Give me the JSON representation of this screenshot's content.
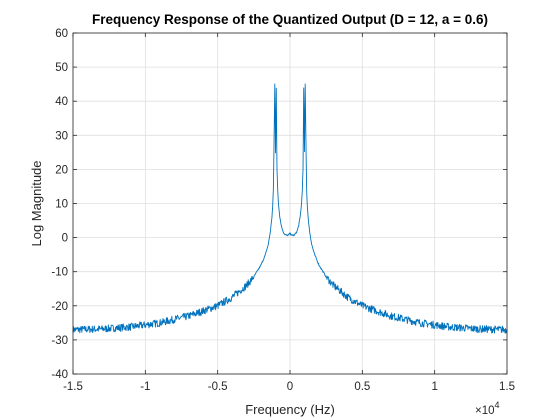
{
  "chart_data": {
    "type": "line",
    "title": "Frequency Response of the Quantized Output (D = 12, a = 0.6)",
    "xlabel": "Frequency (Hz)",
    "ylabel": "Log Magnitude",
    "x_exponent_base": "×10",
    "x_exponent_power": "4",
    "xlim": [
      -15000,
      15000
    ],
    "ylim": [
      -40,
      60
    ],
    "xticks": [
      -15000,
      -10000,
      -5000,
      0,
      5000,
      10000,
      15000
    ],
    "xtick_labels": [
      "-1.5",
      "-1",
      "-0.5",
      "0",
      "0.5",
      "1",
      "1.5"
    ],
    "yticks": [
      -40,
      -30,
      -20,
      -10,
      0,
      10,
      20,
      30,
      40,
      50,
      60
    ],
    "ytick_labels": [
      "-40",
      "-30",
      "-20",
      "-10",
      "0",
      "10",
      "20",
      "30",
      "40",
      "50",
      "60"
    ],
    "grid": true,
    "line_color": "#0072BD",
    "series": [
      {
        "x": [
          -15000,
          -13000,
          -11000,
          -9000,
          -7000,
          -5000,
          -4000,
          -3000,
          -2500,
          -2000,
          -1700,
          -1500,
          -1350,
          -1250,
          -1200,
          -1150,
          -1100,
          -1050,
          -1000,
          -950,
          -900,
          -850,
          -800,
          -700,
          -600,
          -500,
          -400,
          -300,
          -200,
          -100,
          0,
          100,
          200,
          300,
          400,
          500,
          600,
          700,
          800,
          850,
          900,
          950,
          1000,
          1050,
          1100,
          1150,
          1200,
          1250,
          1350,
          1500,
          1700,
          2000,
          2500,
          3000,
          4000,
          5000,
          7000,
          9000,
          11000,
          13000,
          15000
        ],
        "y": [
          -27,
          -26.8,
          -26.2,
          -25,
          -23,
          -20,
          -17.5,
          -14,
          -11.5,
          -8,
          -5,
          -2,
          2,
          6,
          9,
          14,
          29,
          45,
          25,
          44,
          20,
          14,
          10,
          6,
          3.5,
          2,
          1.2,
          0.8,
          0.6,
          0.8,
          1.2,
          0.8,
          0.6,
          0.8,
          1.2,
          2,
          3.5,
          6,
          10,
          14,
          20,
          44,
          25,
          45,
          29,
          14,
          9,
          6,
          2,
          -2,
          -5,
          -8,
          -11.5,
          -14,
          -17.5,
          -20,
          -23,
          -25,
          -26.2,
          -26.8,
          -27
        ]
      }
    ]
  }
}
